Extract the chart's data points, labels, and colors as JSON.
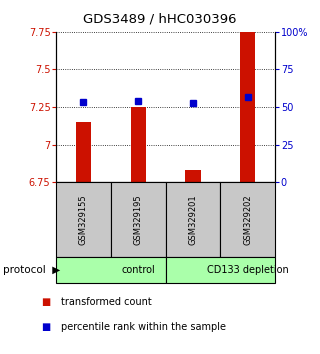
{
  "title": "GDS3489 / hHC030396",
  "samples": [
    "GSM329155",
    "GSM329195",
    "GSM329201",
    "GSM329202"
  ],
  "bar_values": [
    7.15,
    7.25,
    6.83,
    7.75
  ],
  "percentile_values": [
    7.285,
    7.29,
    7.275,
    7.32
  ],
  "bar_color": "#cc1100",
  "marker_color": "#0000cc",
  "ylim_left": [
    6.75,
    7.75
  ],
  "ylim_right": [
    0,
    100
  ],
  "yticks_left": [
    6.75,
    7.0,
    7.25,
    7.5,
    7.75
  ],
  "yticks_right": [
    0,
    25,
    50,
    75,
    100
  ],
  "ytick_labels_left": [
    "6.75",
    "7",
    "7.25",
    "7.5",
    "7.75"
  ],
  "ytick_labels_right": [
    "0",
    "25",
    "50",
    "75",
    "100%"
  ],
  "groups": [
    {
      "label": "control",
      "start": 0,
      "end": 2,
      "color": "#aaffaa"
    },
    {
      "label": "CD133 depletion",
      "start": 2,
      "end": 4,
      "color": "#aaffaa"
    }
  ],
  "legend_items": [
    {
      "label": "transformed count",
      "color": "#cc1100"
    },
    {
      "label": "percentile rank within the sample",
      "color": "#0000cc"
    }
  ],
  "protocol_label": "protocol",
  "sample_box_color": "#c8c8c8"
}
